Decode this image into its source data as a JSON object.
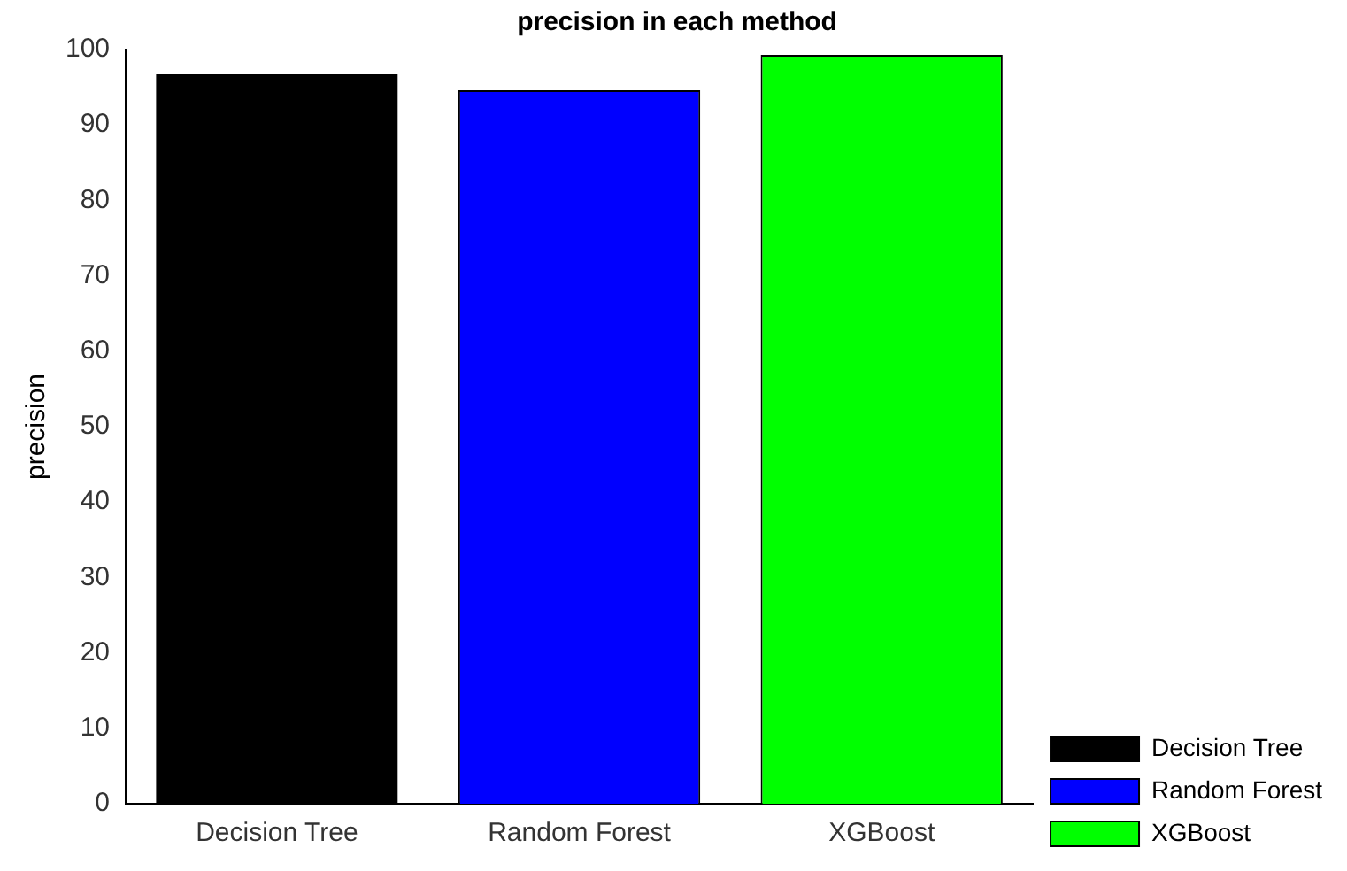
{
  "chart_data": {
    "type": "bar",
    "title": "precision in each method",
    "ylabel": "precision",
    "categories": [
      "Decision Tree",
      "Random Forest",
      "XGBoost"
    ],
    "series": [
      {
        "name": "Decision Tree",
        "color": "#000000",
        "values": [
          96.7,
          null,
          null
        ]
      },
      {
        "name": "Random Forest",
        "color": "#0000ff",
        "values": [
          null,
          94.6,
          null
        ]
      },
      {
        "name": "XGBoost",
        "color": "#00ff00",
        "values": [
          null,
          null,
          99.3
        ]
      }
    ],
    "ylim": [
      0,
      100
    ],
    "yticks": [
      0,
      10,
      20,
      30,
      40,
      50,
      60,
      70,
      80,
      90,
      100
    ],
    "grid": false,
    "legend": "bottom right"
  }
}
